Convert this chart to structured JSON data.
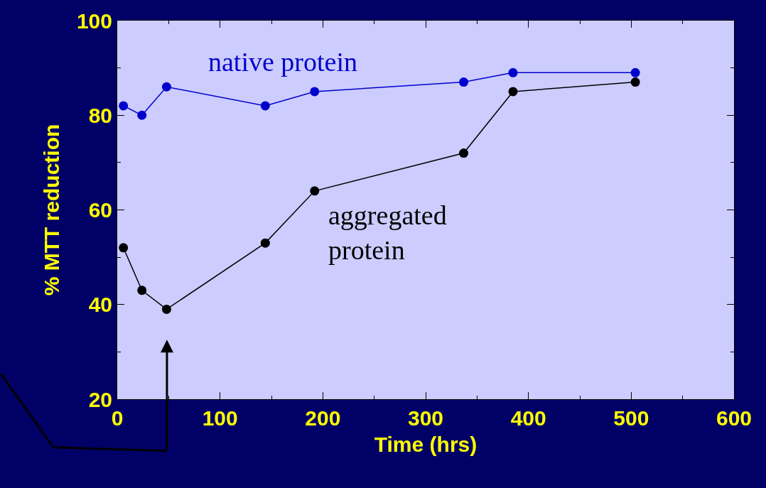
{
  "chart_data": {
    "type": "line",
    "xlabel": "Time (hrs)",
    "ylabel": "% MTT reduction",
    "xlim": [
      0,
      600
    ],
    "xticks": [
      0,
      100,
      200,
      300,
      400,
      500,
      600
    ],
    "ylim": [
      20,
      100
    ],
    "yticks": [
      20,
      40,
      60,
      80,
      100
    ],
    "marker": "circle",
    "grid": false,
    "legend": false,
    "series": [
      {
        "color": "#0000cc",
        "x": [
          6,
          24,
          48,
          144,
          192,
          337,
          385,
          504
        ],
        "values": [
          82,
          80,
          86,
          82,
          85,
          87,
          89,
          89
        ]
      },
      {
        "color": "#000000",
        "x": [
          6,
          24,
          48,
          144,
          192,
          337,
          385,
          504
        ],
        "values": [
          52,
          43,
          39,
          53,
          64,
          72,
          85,
          87
        ]
      }
    ],
    "annotations": [
      "native protein",
      "aggregated\nprotein"
    ]
  }
}
